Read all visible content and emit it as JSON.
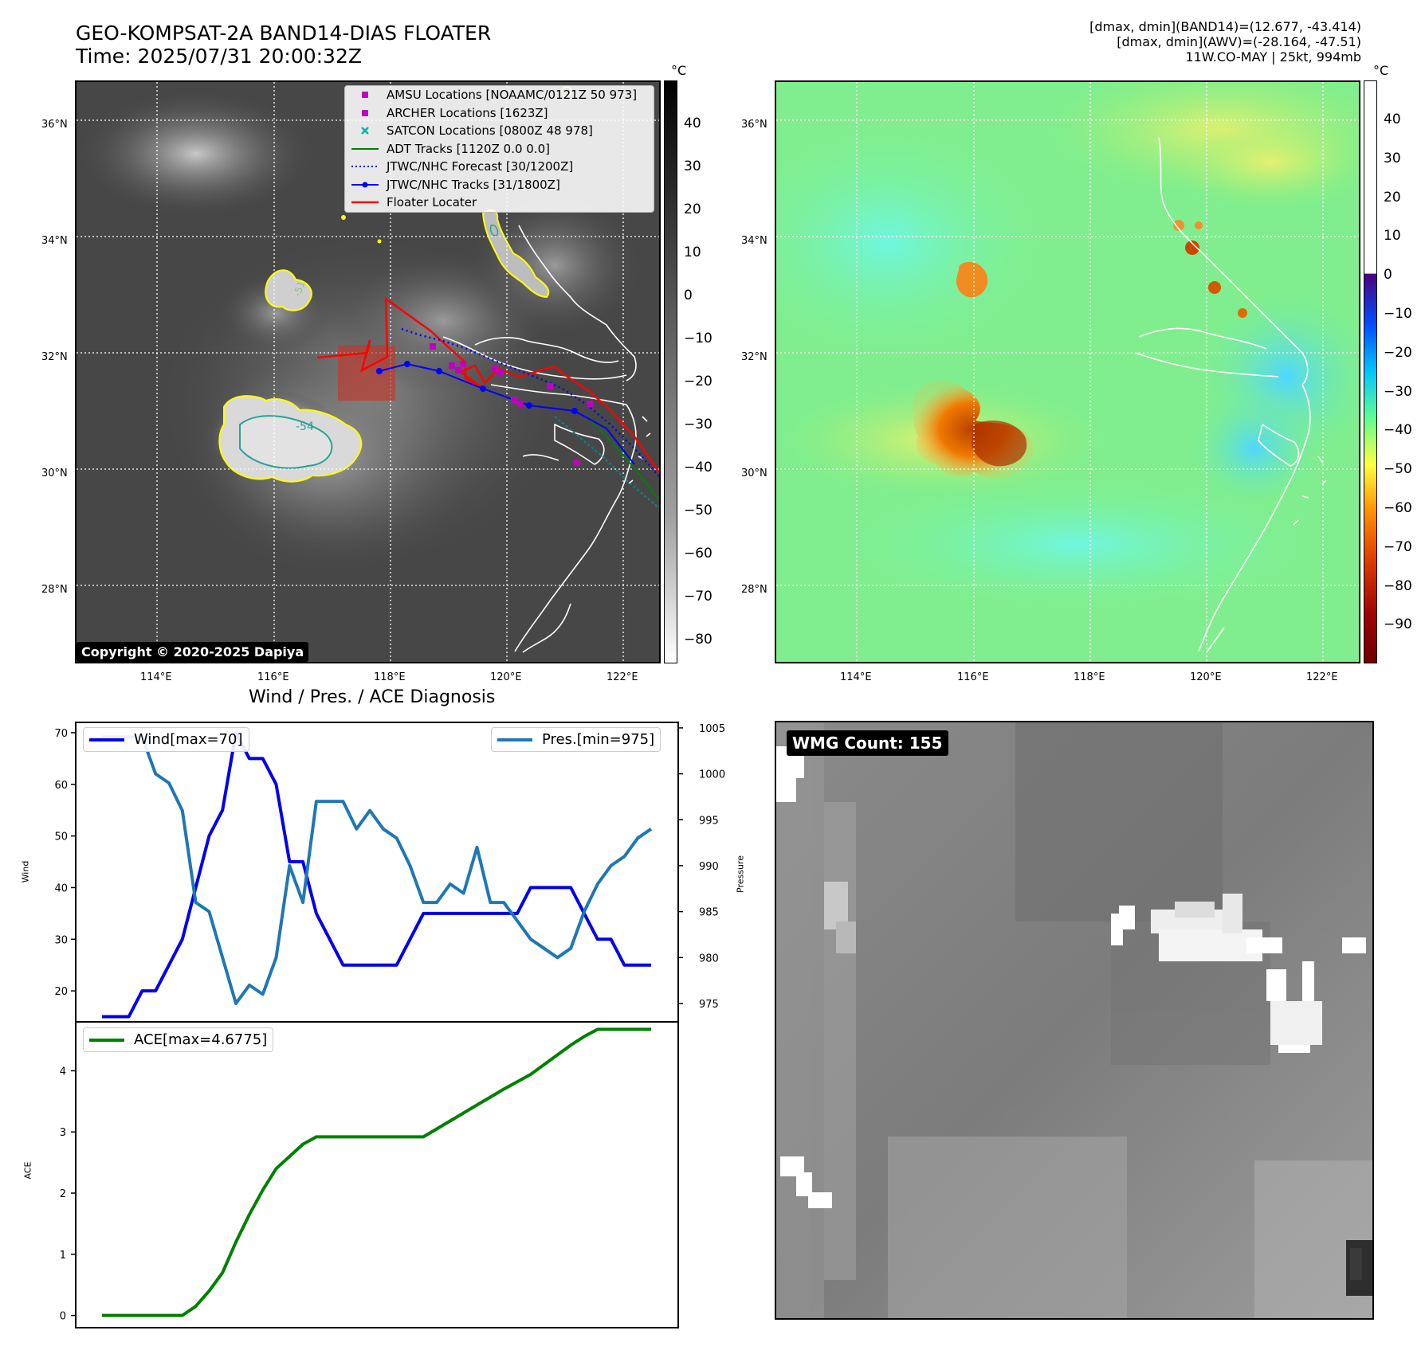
{
  "header": {
    "title_line1": "GEO-KOMPSAT-2A BAND14-DIAS FLOATER",
    "title_line2": "Time: 2025/07/31 20:00:32Z",
    "info_line1": "[dmax, dmin](BAND14)=(12.677, -43.414)",
    "info_line2": "[dmax, dmin](AWV)=(-28.164, -47.51)",
    "info_line3": "11W.CO-MAY | 25kt, 994mb"
  },
  "map_ir": {
    "lat_labels": [
      "36°N",
      "34°N",
      "32°N",
      "30°N",
      "28°N"
    ],
    "lon_labels": [
      "114°E",
      "116°E",
      "118°E",
      "120°E",
      "122°E"
    ],
    "contour_label": "-54",
    "contour_label2": "-51",
    "copyright": "Copyright © 2020-2025 Dapiya",
    "legend": [
      {
        "label": "AMSU Locations [NOAAMC/0121Z 50 973]",
        "color": "#c000c0",
        "kind": "square"
      },
      {
        "label": "ARCHER Locations [1623Z]",
        "color": "#c000c0",
        "kind": "square"
      },
      {
        "label": "SATCON Locations [0800Z 48 978]",
        "color": "#00b0b0",
        "kind": "x"
      },
      {
        "label": "ADT Tracks [1120Z 0.0 0.0]",
        "color": "#008000",
        "kind": "line"
      },
      {
        "label": "JTWC/NHC Forecast [30/1200Z]",
        "color": "#0000ff",
        "kind": "dotted"
      },
      {
        "label": "JTWC/NHC Tracks [31/1800Z]",
        "color": "#0000ff",
        "kind": "linedot"
      },
      {
        "label": "Floater Locater",
        "color": "#ff0000",
        "kind": "line"
      }
    ]
  },
  "colorbar_ir": {
    "unit": "°C",
    "ticks": [
      "40",
      "30",
      "20",
      "10",
      "0",
      "−10",
      "−20",
      "−30",
      "−40",
      "−50",
      "−60",
      "−70",
      "−80"
    ]
  },
  "map_awv": {
    "lat_labels": [
      "36°N",
      "34°N",
      "32°N",
      "30°N",
      "28°N"
    ],
    "lon_labels": [
      "114°E",
      "116°E",
      "118°E",
      "120°E",
      "122°E"
    ]
  },
  "colorbar_awv": {
    "unit": "°C",
    "ticks": [
      "40",
      "30",
      "20",
      "10",
      "0",
      "−10",
      "−20",
      "−30",
      "−40",
      "−50",
      "−60",
      "−70",
      "−80",
      "−90"
    ]
  },
  "wmg": {
    "label": "WMG Count: 155"
  },
  "colors": {
    "wind": "#0000ee",
    "pressure": "#1f77b4",
    "ace": "#008000",
    "awv_background": "#7ff08a"
  },
  "chart_data": [
    {
      "type": "line",
      "title": "Wind / Pres. / ACE Diagnosis",
      "ylabel": "Wind",
      "ylabel_right": "Pressure",
      "ylim": [
        14,
        72
      ],
      "ylim_right": [
        973,
        1005.6
      ],
      "yticks": [
        20,
        30,
        40,
        50,
        60,
        70
      ],
      "yticks_right": [
        975,
        980,
        985,
        990,
        995,
        1000,
        1005
      ],
      "x": [
        0,
        1,
        2,
        3,
        4,
        5,
        6,
        7,
        8,
        9,
        10,
        11,
        12,
        13,
        14,
        15,
        16,
        17,
        18,
        19,
        20,
        21,
        22,
        23,
        24,
        25,
        26,
        27,
        28,
        29,
        30,
        31,
        32,
        33,
        34,
        35,
        36,
        37,
        38,
        39,
        40,
        41
      ],
      "series": [
        {
          "name": "Wind[max=70]",
          "axis": "left",
          "values": [
            15,
            15,
            15,
            20,
            20,
            25,
            30,
            40,
            50,
            55,
            70,
            65,
            65,
            60,
            45,
            45,
            35,
            30,
            25,
            25,
            25,
            25,
            25,
            30,
            35,
            35,
            35,
            35,
            35,
            35,
            35,
            35,
            40,
            40,
            40,
            40,
            35,
            30,
            30,
            25,
            25,
            25
          ]
        },
        {
          "name": "Pres.[min=975]",
          "axis": "right",
          "values": [
            1004,
            1004,
            1004,
            1004,
            1000,
            999,
            996,
            986,
            985,
            980,
            975,
            977,
            976,
            980,
            990,
            986,
            997,
            997,
            997,
            994,
            996,
            994,
            993,
            990,
            986,
            986,
            988,
            987,
            992,
            986,
            986,
            984,
            982,
            981,
            980,
            981,
            985,
            988,
            990,
            991,
            993,
            994
          ]
        }
      ]
    },
    {
      "type": "line",
      "ylabel": "ACE",
      "ylim": [
        -0.2,
        4.8
      ],
      "yticks": [
        0,
        1,
        2,
        3,
        4
      ],
      "x": [
        0,
        1,
        2,
        3,
        4,
        5,
        6,
        7,
        8,
        9,
        10,
        11,
        12,
        13,
        14,
        15,
        16,
        17,
        18,
        19,
        20,
        21,
        22,
        23,
        24,
        25,
        26,
        27,
        28,
        29,
        30,
        31,
        32,
        33,
        34,
        35,
        36,
        37,
        38,
        39,
        40,
        41
      ],
      "series": [
        {
          "name": "ACE[max=4.6775]",
          "values": [
            0,
            0,
            0,
            0,
            0,
            0,
            0,
            0.15,
            0.4,
            0.7,
            1.2,
            1.65,
            2.05,
            2.4,
            2.6,
            2.8,
            2.92,
            2.92,
            2.92,
            2.92,
            2.92,
            2.92,
            2.92,
            2.92,
            2.92,
            3.05,
            3.18,
            3.31,
            3.44,
            3.57,
            3.7,
            3.82,
            3.94,
            4.1,
            4.26,
            4.42,
            4.56,
            4.6775,
            4.6775,
            4.6775,
            4.6775,
            4.6775
          ]
        }
      ]
    }
  ]
}
